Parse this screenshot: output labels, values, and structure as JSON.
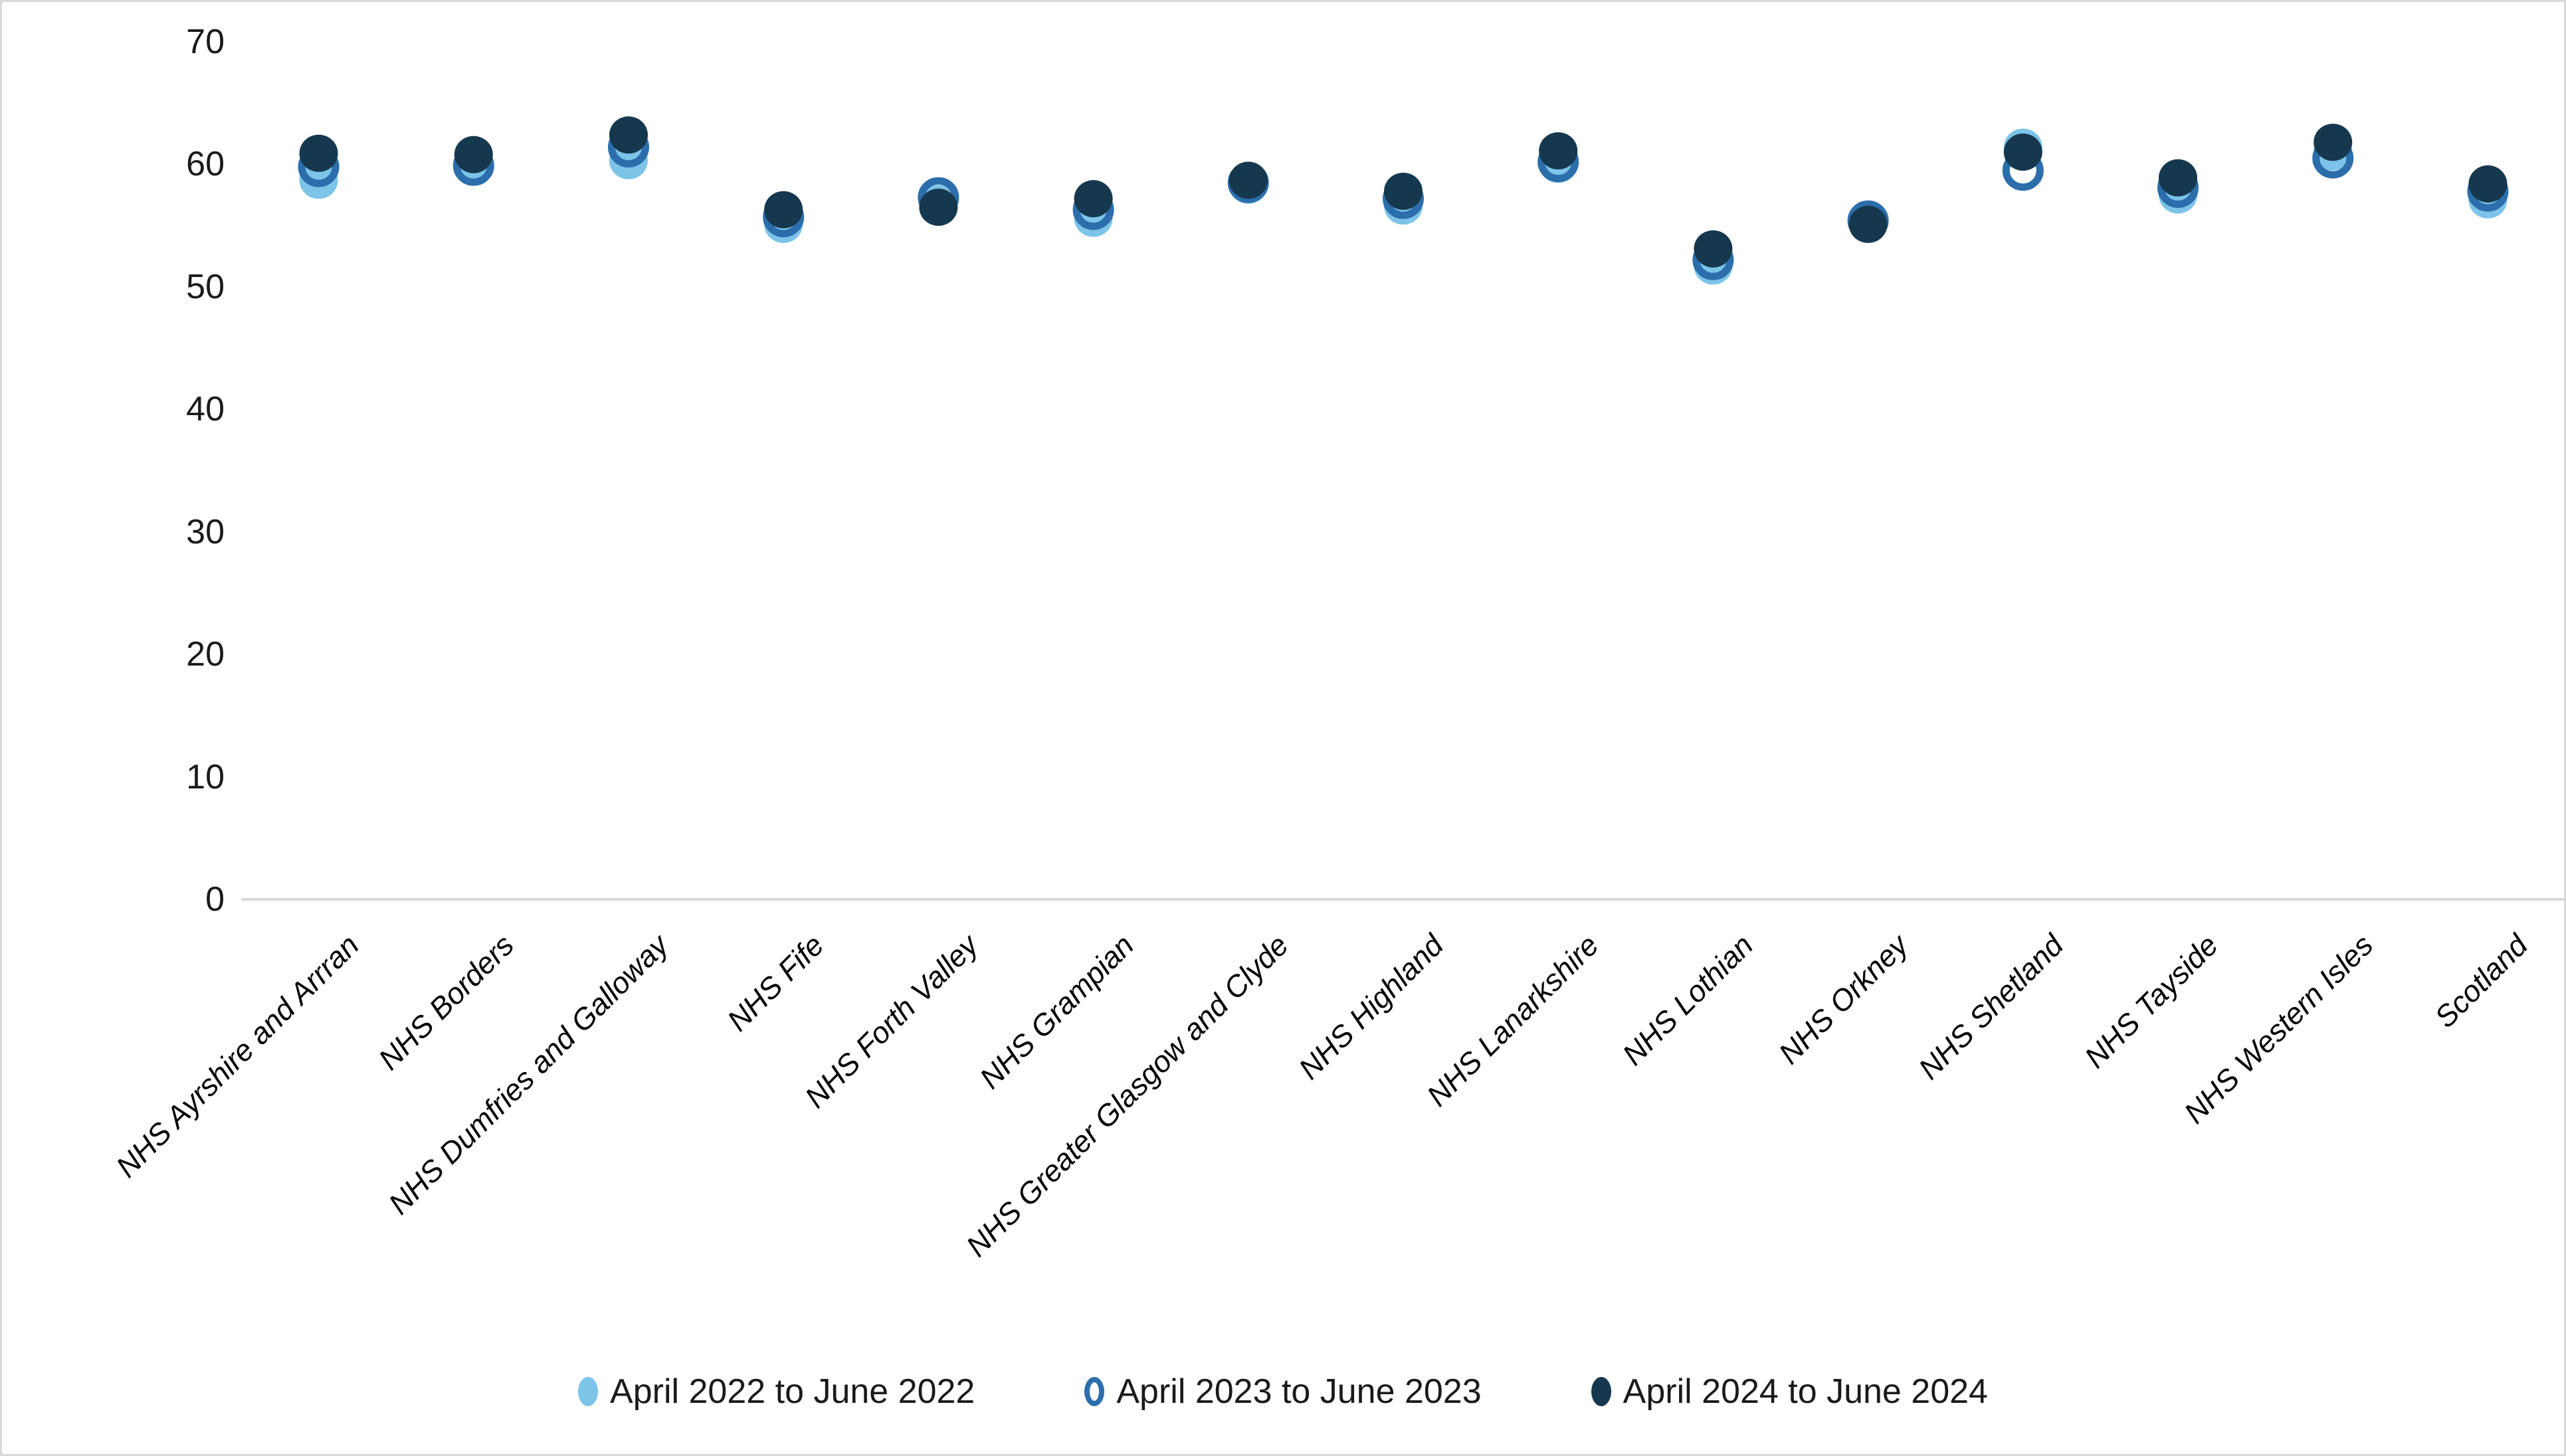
{
  "chart_data": {
    "type": "scatter",
    "title": "",
    "xlabel": "",
    "ylabel": "",
    "ylim": [
      0,
      70
    ],
    "y_ticks": [
      0,
      10,
      20,
      30,
      40,
      50,
      60,
      70
    ],
    "grid": "off",
    "legend_position": "bottom",
    "x_tick_rotation_deg": 45,
    "x_tick_style": "italic",
    "categories": [
      "NHS Ayrshire and Arrran",
      "NHS Borders",
      "NHS Dumfries and Galloway",
      "NHS Fife",
      "NHS Forth Valley",
      "NHS Grampian",
      "NHS Greater Glasgow and Clyde",
      "NHS Highland",
      "NHS Lanarkshire",
      "NHS Lothian",
      "NHS Orkney",
      "NHS Shetland",
      "NHS Tayside",
      "NHS Western Isles",
      "Scotland"
    ],
    "series": [
      {
        "name": "April 2022 to June 2022",
        "marker": "filled-circle",
        "color": "#7CC4E8",
        "values": [
          58.7,
          60.0,
          60.3,
          55.1,
          56.8,
          55.6,
          58.3,
          56.6,
          60.0,
          51.7,
          55.2,
          61.4,
          57.5,
          61.0,
          57.1
        ]
      },
      {
        "name": "April 2023 to June 2023",
        "marker": "open-circle",
        "color": "#2C6EAC",
        "values": [
          59.8,
          59.9,
          61.4,
          55.7,
          57.3,
          56.3,
          58.5,
          57.2,
          60.2,
          52.2,
          55.4,
          59.5,
          58.1,
          60.5,
          57.8
        ]
      },
      {
        "name": "April 2024 to June 2024",
        "marker": "filled-circle",
        "color": "#16384E",
        "values": [
          60.9,
          60.8,
          62.4,
          56.3,
          56.5,
          57.2,
          58.7,
          57.8,
          61.1,
          53.1,
          55.1,
          61.0,
          58.9,
          61.8,
          58.4
        ]
      }
    ]
  },
  "colors": {
    "axis_line": "#D9D9D9",
    "canvas_border": "#D9D9D9",
    "tick_text": "#1A1A1A",
    "category_text": "#000000",
    "legend_text": "#1A1A1A",
    "background": "#FFFFFF"
  }
}
